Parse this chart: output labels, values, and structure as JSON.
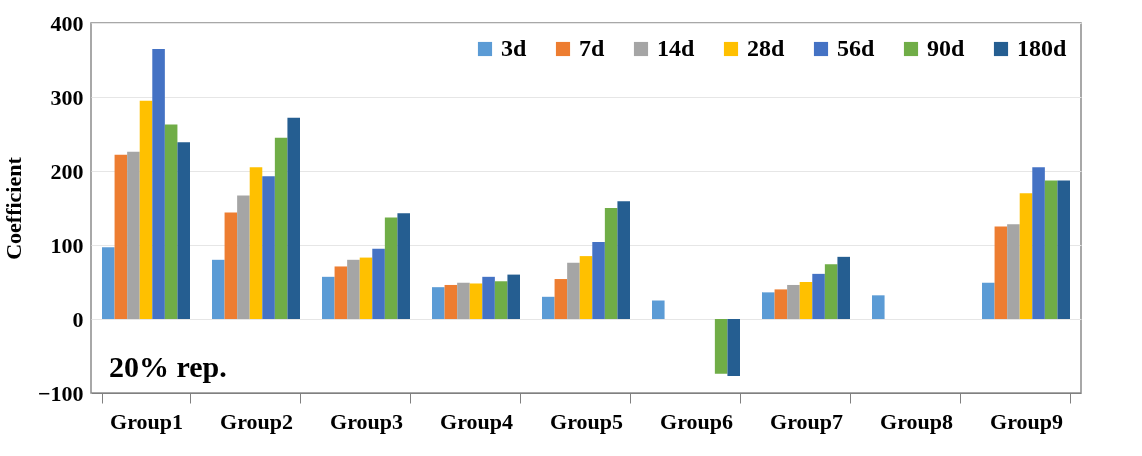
{
  "chart_data": {
    "type": "bar",
    "ylabel": "Coefficient",
    "categories": [
      "Group1",
      "Group2",
      "Group3",
      "Group4",
      "Group5",
      "Group6",
      "Group7",
      "Group8",
      "Group9"
    ],
    "series": [
      {
        "name": "3d",
        "color": "#5b9bd5",
        "values": [
          97,
          80,
          57,
          43,
          30,
          25,
          36,
          32,
          49
        ]
      },
      {
        "name": "7d",
        "color": "#ed7d31",
        "values": [
          222,
          144,
          71,
          46,
          54,
          null,
          40,
          null,
          125
        ]
      },
      {
        "name": "14d",
        "color": "#a5a5a5",
        "values": [
          226,
          167,
          80,
          49,
          76,
          null,
          46,
          null,
          128
        ]
      },
      {
        "name": "28d",
        "color": "#ffc000",
        "values": [
          295,
          205,
          83,
          48,
          85,
          null,
          50,
          null,
          170
        ]
      },
      {
        "name": "56d",
        "color": "#4472c4",
        "values": [
          365,
          193,
          95,
          57,
          104,
          null,
          61,
          null,
          205
        ]
      },
      {
        "name": "90d",
        "color": "#70ad47",
        "values": [
          263,
          245,
          137,
          51,
          150,
          -74,
          74,
          null,
          187
        ]
      },
      {
        "name": "180d",
        "color": "#255e91",
        "values": [
          239,
          272,
          143,
          60,
          159,
          -77,
          84,
          null,
          187
        ]
      }
    ],
    "ylim": [
      -100,
      400
    ],
    "yticks": [
      -100,
      0,
      100,
      200,
      300,
      400
    ],
    "grid": "y",
    "legend": "top right",
    "annotations": [
      "20% rep."
    ]
  }
}
